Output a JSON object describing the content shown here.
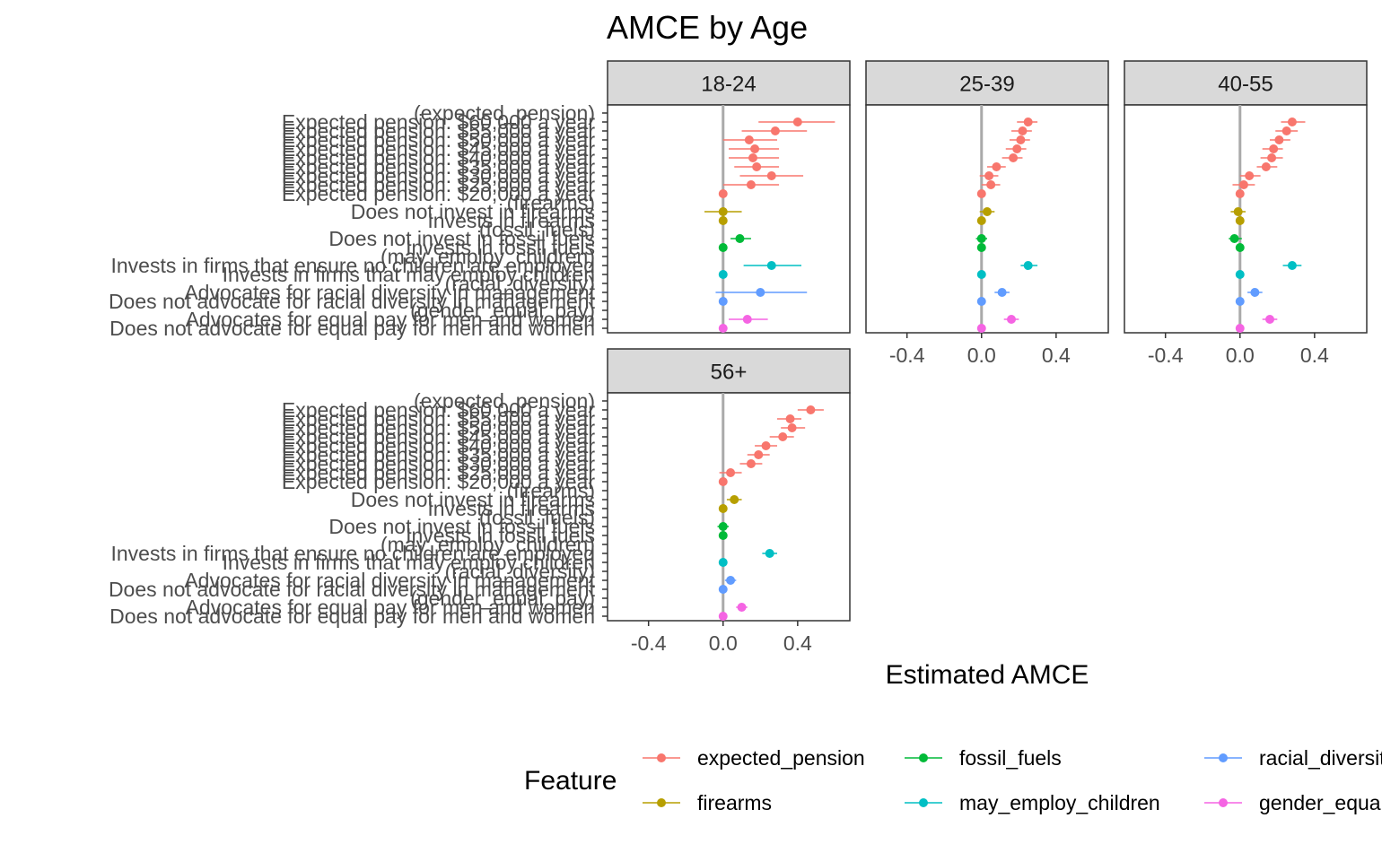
{
  "chart_data": {
    "type": "scatter",
    "title": "AMCE by Age",
    "xlabel": "Estimated AMCE",
    "ylabel": "",
    "xlim": [
      -0.62,
      0.68
    ],
    "x_ticks": [
      -0.4,
      0.0,
      0.4
    ],
    "x_tick_labels": [
      "-0.4",
      "0.0",
      "0.4"
    ],
    "grid": false,
    "reference_line": 0,
    "legend": {
      "title": "Feature",
      "position": "bottom",
      "entries": [
        {
          "name": "expected_pension",
          "color": "#F8766D"
        },
        {
          "name": "firearms",
          "color": "#B79F00"
        },
        {
          "name": "fossil_fuels",
          "color": "#00BA38"
        },
        {
          "name": "may_employ_children",
          "color": "#00BFC4"
        },
        {
          "name": "racial_diversity",
          "color": "#619CFF"
        },
        {
          "name": "gender_equal_pay",
          "color": "#F564E3"
        }
      ]
    },
    "y_labels": [
      {
        "text": "(expected_pension)",
        "pos": 0,
        "feature": "expected_pension"
      },
      {
        "text": "Expected pension: $60,000 a year",
        "pos": 1,
        "feature": "expected_pension"
      },
      {
        "text": "Expected pension: $55,000 a year",
        "pos": 2,
        "feature": "expected_pension"
      },
      {
        "text": "Expected pension: $50,000 a year",
        "pos": 3,
        "feature": "expected_pension"
      },
      {
        "text": "Expected pension: $45,000 a year",
        "pos": 4,
        "feature": "expected_pension"
      },
      {
        "text": "Expected pension: $40,000 a year",
        "pos": 5,
        "feature": "expected_pension"
      },
      {
        "text": "Expected pension: $35,000 a year",
        "pos": 6,
        "feature": "expected_pension"
      },
      {
        "text": "Expected pension: $30,000 a year",
        "pos": 7,
        "feature": "expected_pension"
      },
      {
        "text": "Expected pension: $25,000 a year",
        "pos": 8,
        "feature": "expected_pension"
      },
      {
        "text": "Expected pension: $20,000 a year",
        "pos": 9,
        "feature": "expected_pension"
      },
      {
        "text": "(firearms)",
        "pos": 10,
        "feature": "firearms"
      },
      {
        "text": "Does not invest in firearms",
        "pos": 11,
        "feature": "firearms"
      },
      {
        "text": "Invests in firearms",
        "pos": 12,
        "feature": "firearms"
      },
      {
        "text": "(fossil_fuels)",
        "pos": 13,
        "feature": "fossil_fuels"
      },
      {
        "text": "Does not invest in fossil fuels",
        "pos": 14,
        "feature": "fossil_fuels"
      },
      {
        "text": "Invests in fossil fuels",
        "pos": 15,
        "feature": "fossil_fuels"
      },
      {
        "text": "(may_employ_children)",
        "pos": 16,
        "feature": "may_employ_children"
      },
      {
        "text": "Invests in firms that ensure no children are employed",
        "pos": 17,
        "feature": "may_employ_children"
      },
      {
        "text": "Invests in firms that may employ children",
        "pos": 18,
        "feature": "may_employ_children"
      },
      {
        "text": "(racial_diversity)",
        "pos": 19,
        "feature": "racial_diversity"
      },
      {
        "text": "Advocates for racial diversity in management",
        "pos": 20,
        "feature": "racial_diversity"
      },
      {
        "text": "Does not advocate for racial diversity in management",
        "pos": 21,
        "feature": "racial_diversity"
      },
      {
        "text": "(gender_equal_pay)",
        "pos": 22,
        "feature": "gender_equal_pay"
      },
      {
        "text": "Advocates for equal pay for men and women",
        "pos": 23,
        "feature": "gender_equal_pay"
      },
      {
        "text": "Does not advocate for equal pay for men and women",
        "pos": 24,
        "feature": "gender_equal_pay"
      }
    ],
    "panels": [
      {
        "name": "18-24",
        "show_y_labels": true,
        "show_x_axis": false,
        "points": [
          {
            "pos": 1,
            "est": 0.4,
            "lo": 0.19,
            "hi": 0.6
          },
          {
            "pos": 2,
            "est": 0.28,
            "lo": 0.1,
            "hi": 0.45
          },
          {
            "pos": 3,
            "est": 0.14,
            "lo": 0.0,
            "hi": 0.29
          },
          {
            "pos": 4,
            "est": 0.17,
            "lo": 0.03,
            "hi": 0.3
          },
          {
            "pos": 5,
            "est": 0.16,
            "lo": 0.03,
            "hi": 0.3
          },
          {
            "pos": 6,
            "est": 0.18,
            "lo": 0.06,
            "hi": 0.3
          },
          {
            "pos": 7,
            "est": 0.26,
            "lo": 0.09,
            "hi": 0.43
          },
          {
            "pos": 8,
            "est": 0.15,
            "lo": 0.0,
            "hi": 0.3
          },
          {
            "pos": 9,
            "est": 0.0,
            "lo": 0.0,
            "hi": 0.0
          },
          {
            "pos": 11,
            "est": 0.0,
            "lo": -0.1,
            "hi": 0.1
          },
          {
            "pos": 12,
            "est": 0.0,
            "lo": 0.0,
            "hi": 0.0
          },
          {
            "pos": 14,
            "est": 0.09,
            "lo": 0.04,
            "hi": 0.15
          },
          {
            "pos": 15,
            "est": 0.0,
            "lo": 0.0,
            "hi": 0.0
          },
          {
            "pos": 17,
            "est": 0.26,
            "lo": 0.11,
            "hi": 0.42
          },
          {
            "pos": 18,
            "est": 0.0,
            "lo": 0.0,
            "hi": 0.0
          },
          {
            "pos": 20,
            "est": 0.2,
            "lo": -0.04,
            "hi": 0.45
          },
          {
            "pos": 21,
            "est": 0.0,
            "lo": 0.0,
            "hi": 0.0
          },
          {
            "pos": 23,
            "est": 0.13,
            "lo": 0.03,
            "hi": 0.24
          },
          {
            "pos": 24,
            "est": 0.0,
            "lo": 0.0,
            "hi": 0.0
          }
        ]
      },
      {
        "name": "25-39",
        "show_y_labels": false,
        "show_x_axis": true,
        "points": [
          {
            "pos": 1,
            "est": 0.25,
            "lo": 0.19,
            "hi": 0.3
          },
          {
            "pos": 2,
            "est": 0.22,
            "lo": 0.16,
            "hi": 0.27
          },
          {
            "pos": 3,
            "est": 0.21,
            "lo": 0.15,
            "hi": 0.26
          },
          {
            "pos": 4,
            "est": 0.19,
            "lo": 0.13,
            "hi": 0.24
          },
          {
            "pos": 5,
            "est": 0.17,
            "lo": 0.11,
            "hi": 0.22
          },
          {
            "pos": 6,
            "est": 0.08,
            "lo": 0.03,
            "hi": 0.13
          },
          {
            "pos": 7,
            "est": 0.04,
            "lo": -0.01,
            "hi": 0.09
          },
          {
            "pos": 8,
            "est": 0.05,
            "lo": 0.0,
            "hi": 0.1
          },
          {
            "pos": 9,
            "est": 0.0,
            "lo": 0.0,
            "hi": 0.0
          },
          {
            "pos": 11,
            "est": 0.03,
            "lo": -0.01,
            "hi": 0.07
          },
          {
            "pos": 12,
            "est": 0.0,
            "lo": 0.0,
            "hi": 0.0
          },
          {
            "pos": 14,
            "est": 0.0,
            "lo": -0.03,
            "hi": 0.03
          },
          {
            "pos": 15,
            "est": 0.0,
            "lo": 0.0,
            "hi": 0.0
          },
          {
            "pos": 17,
            "est": 0.25,
            "lo": 0.21,
            "hi": 0.3
          },
          {
            "pos": 18,
            "est": 0.0,
            "lo": 0.0,
            "hi": 0.0
          },
          {
            "pos": 20,
            "est": 0.11,
            "lo": 0.07,
            "hi": 0.15
          },
          {
            "pos": 21,
            "est": 0.0,
            "lo": 0.0,
            "hi": 0.0
          },
          {
            "pos": 23,
            "est": 0.16,
            "lo": 0.12,
            "hi": 0.2
          },
          {
            "pos": 24,
            "est": 0.0,
            "lo": 0.0,
            "hi": 0.0
          }
        ]
      },
      {
        "name": "40-55",
        "show_y_labels": false,
        "show_x_axis": true,
        "points": [
          {
            "pos": 1,
            "est": 0.28,
            "lo": 0.22,
            "hi": 0.35
          },
          {
            "pos": 2,
            "est": 0.25,
            "lo": 0.19,
            "hi": 0.31
          },
          {
            "pos": 3,
            "est": 0.21,
            "lo": 0.16,
            "hi": 0.27
          },
          {
            "pos": 4,
            "est": 0.18,
            "lo": 0.12,
            "hi": 0.23
          },
          {
            "pos": 5,
            "est": 0.17,
            "lo": 0.11,
            "hi": 0.23
          },
          {
            "pos": 6,
            "est": 0.14,
            "lo": 0.09,
            "hi": 0.2
          },
          {
            "pos": 7,
            "est": 0.05,
            "lo": 0.0,
            "hi": 0.11
          },
          {
            "pos": 8,
            "est": 0.02,
            "lo": -0.04,
            "hi": 0.08
          },
          {
            "pos": 9,
            "est": 0.0,
            "lo": 0.0,
            "hi": 0.0
          },
          {
            "pos": 11,
            "est": -0.01,
            "lo": -0.05,
            "hi": 0.03
          },
          {
            "pos": 12,
            "est": 0.0,
            "lo": 0.0,
            "hi": 0.0
          },
          {
            "pos": 14,
            "est": -0.03,
            "lo": -0.06,
            "hi": 0.01
          },
          {
            "pos": 15,
            "est": 0.0,
            "lo": 0.0,
            "hi": 0.0
          },
          {
            "pos": 17,
            "est": 0.28,
            "lo": 0.23,
            "hi": 0.33
          },
          {
            "pos": 18,
            "est": 0.0,
            "lo": 0.0,
            "hi": 0.0
          },
          {
            "pos": 20,
            "est": 0.08,
            "lo": 0.04,
            "hi": 0.12
          },
          {
            "pos": 21,
            "est": 0.0,
            "lo": 0.0,
            "hi": 0.0
          },
          {
            "pos": 23,
            "est": 0.16,
            "lo": 0.12,
            "hi": 0.2
          },
          {
            "pos": 24,
            "est": 0.0,
            "lo": 0.0,
            "hi": 0.0
          }
        ]
      },
      {
        "name": "56+",
        "show_y_labels": true,
        "show_x_axis": true,
        "points": [
          {
            "pos": 1,
            "est": 0.47,
            "lo": 0.4,
            "hi": 0.54
          },
          {
            "pos": 2,
            "est": 0.36,
            "lo": 0.29,
            "hi": 0.42
          },
          {
            "pos": 3,
            "est": 0.37,
            "lo": 0.31,
            "hi": 0.44
          },
          {
            "pos": 4,
            "est": 0.32,
            "lo": 0.25,
            "hi": 0.38
          },
          {
            "pos": 5,
            "est": 0.23,
            "lo": 0.17,
            "hi": 0.29
          },
          {
            "pos": 6,
            "est": 0.19,
            "lo": 0.13,
            "hi": 0.25
          },
          {
            "pos": 7,
            "est": 0.15,
            "lo": 0.09,
            "hi": 0.21
          },
          {
            "pos": 8,
            "est": 0.04,
            "lo": -0.02,
            "hi": 0.1
          },
          {
            "pos": 9,
            "est": 0.0,
            "lo": 0.0,
            "hi": 0.0
          },
          {
            "pos": 11,
            "est": 0.06,
            "lo": 0.02,
            "hi": 0.1
          },
          {
            "pos": 12,
            "est": 0.0,
            "lo": 0.0,
            "hi": 0.0
          },
          {
            "pos": 14,
            "est": 0.0,
            "lo": -0.03,
            "hi": 0.03
          },
          {
            "pos": 15,
            "est": 0.0,
            "lo": 0.0,
            "hi": 0.0
          },
          {
            "pos": 17,
            "est": 0.25,
            "lo": 0.21,
            "hi": 0.29
          },
          {
            "pos": 18,
            "est": 0.0,
            "lo": 0.0,
            "hi": 0.0
          },
          {
            "pos": 20,
            "est": 0.04,
            "lo": 0.01,
            "hi": 0.07
          },
          {
            "pos": 21,
            "est": 0.0,
            "lo": 0.0,
            "hi": 0.0
          },
          {
            "pos": 23,
            "est": 0.1,
            "lo": 0.07,
            "hi": 0.13
          },
          {
            "pos": 24,
            "est": 0.0,
            "lo": 0.0,
            "hi": 0.0
          }
        ]
      }
    ]
  }
}
